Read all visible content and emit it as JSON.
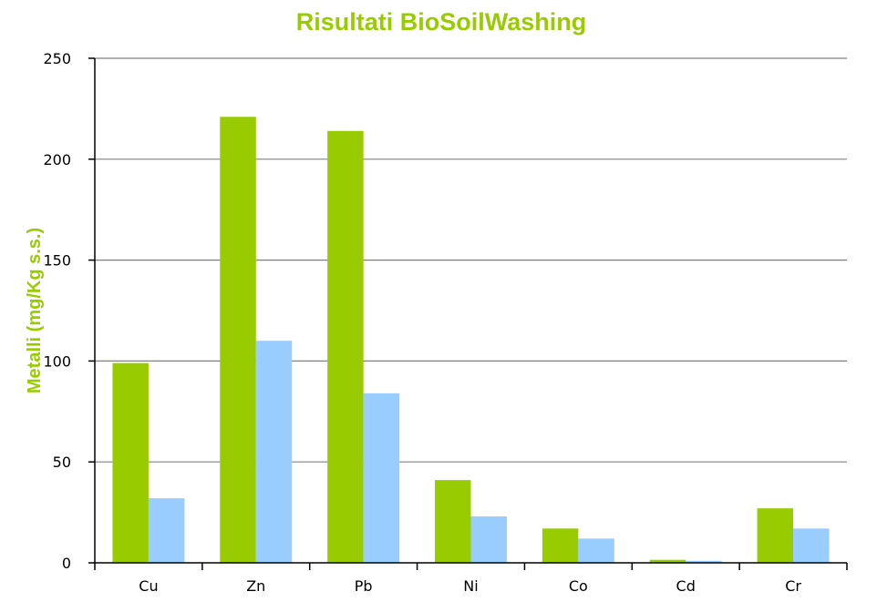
{
  "chart_data": {
    "type": "bar",
    "title": "Risultati BioSoilWashing",
    "xlabel": "",
    "ylabel": "Metalli (mg/Kg s.s.)",
    "categories": [
      "Cu",
      "Zn",
      "Pb",
      "Ni",
      "Co",
      "Cd",
      "Cr"
    ],
    "series": [
      {
        "values": [
          99,
          221,
          214,
          41,
          17,
          1.5,
          27
        ],
        "color": "#99cc00"
      },
      {
        "values": [
          32,
          110,
          84,
          23,
          12,
          1,
          17
        ],
        "color": "#99ccff"
      }
    ],
    "ylim": [
      0,
      250
    ],
    "yticks": [
      0,
      50,
      100,
      150,
      200,
      250
    ],
    "grid": true,
    "legend": "none"
  },
  "colors": {
    "title": "#99cc00",
    "ylabel": "#99cc00",
    "gridline": "#808080",
    "axis": "#000000"
  }
}
